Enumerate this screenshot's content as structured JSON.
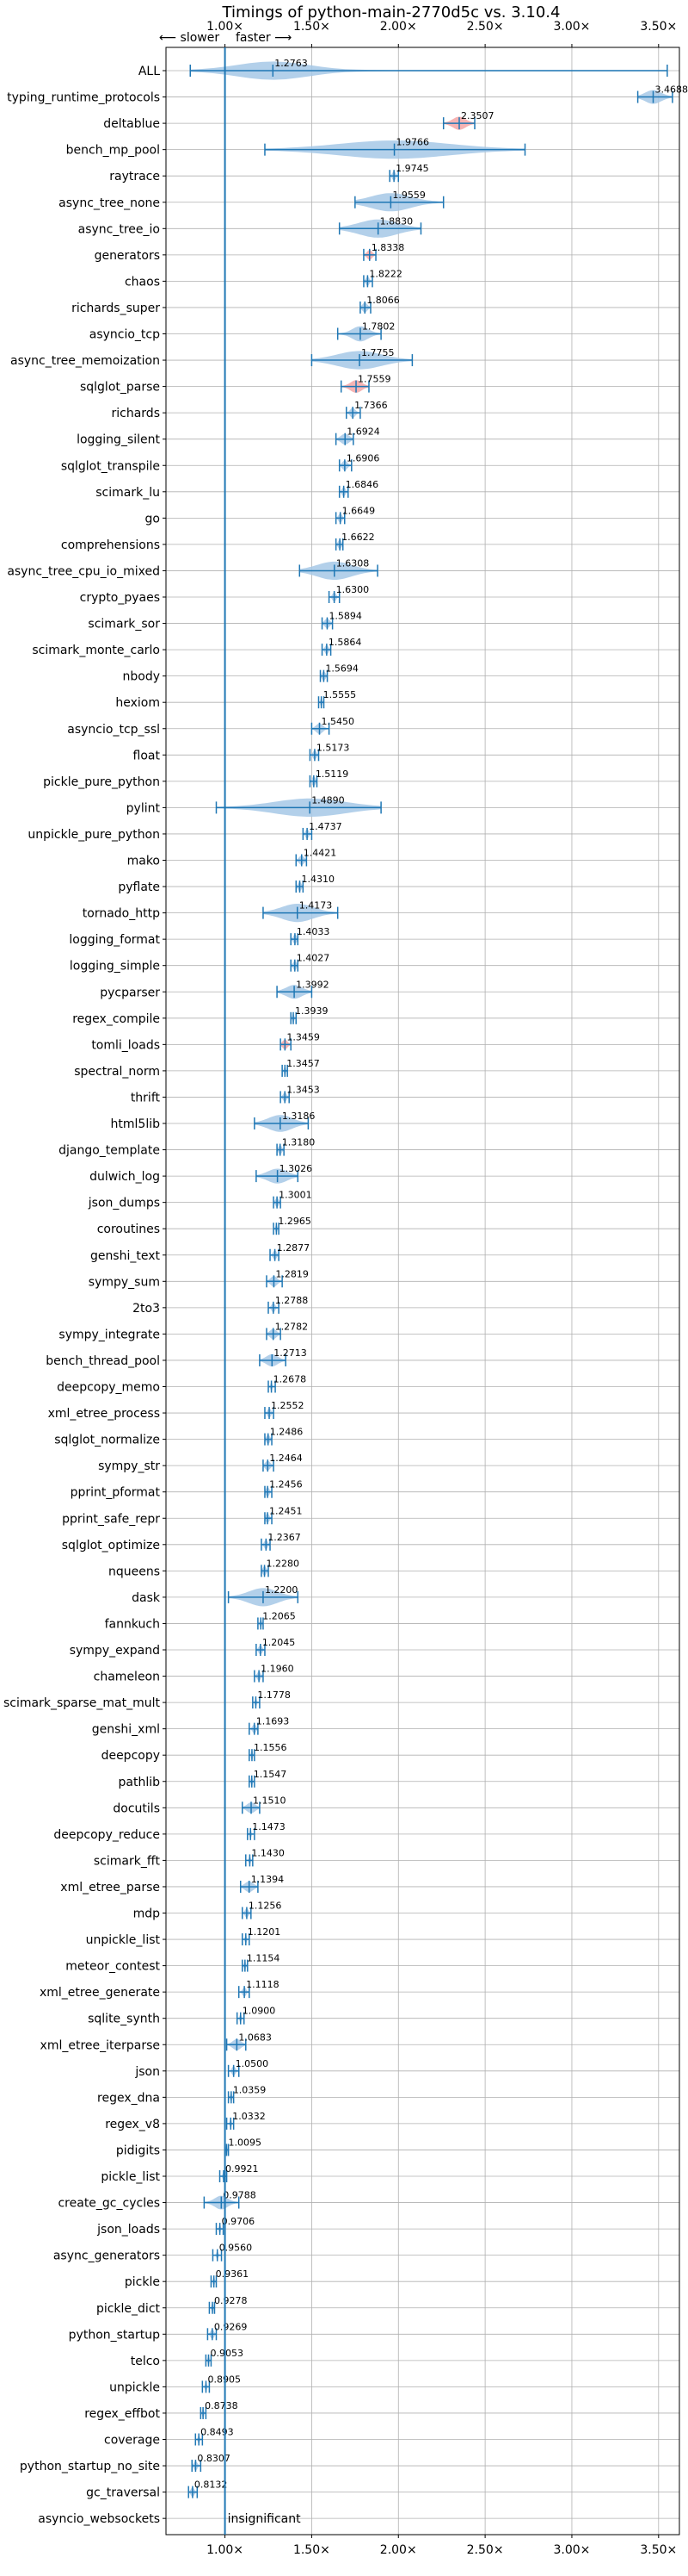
{
  "chart_data": {
    "type": "violin",
    "title": "Timings of python-main-2770d5c vs. 3.10.4",
    "xlabel": "",
    "ylabel": "",
    "xlim": [
      0.66,
      3.62
    ],
    "xticks": [
      {
        "value": 1.0,
        "label": "1.00×"
      },
      {
        "value": 1.5,
        "label": "1.50×"
      },
      {
        "value": 2.0,
        "label": "2.00×"
      },
      {
        "value": 2.5,
        "label": "2.50×"
      },
      {
        "value": 3.0,
        "label": "3.00×"
      },
      {
        "value": 3.5,
        "label": "3.50×"
      }
    ],
    "direction_labels": {
      "slower": "⟵ slower",
      "faster": "faster ⟶"
    },
    "annotation": "insignificant",
    "grid": true,
    "reference_line": 1.0,
    "colors": {
      "violin": "#a6c8e6",
      "violin_highlight": "#f4a6a6",
      "line": "#1f77b4",
      "grid": "#b0b0b0"
    },
    "benchmarks": [
      {
        "name": "ALL",
        "value": 1.2763,
        "min": 0.8,
        "max": 3.55,
        "spread": 0.45
      },
      {
        "name": "typing_runtime_protocols",
        "value": 3.4688,
        "min": 3.38,
        "max": 3.58,
        "spread": 0.1
      },
      {
        "name": "deltablue",
        "value": 2.3507,
        "min": 2.26,
        "max": 2.44,
        "spread": 0.08,
        "highlight": true
      },
      {
        "name": "bench_mp_pool",
        "value": 1.9766,
        "min": 1.23,
        "max": 2.73,
        "spread": 0.7
      },
      {
        "name": "raytrace",
        "value": 1.9745,
        "min": 1.95,
        "max": 2.0,
        "spread": 0.02
      },
      {
        "name": "async_tree_none",
        "value": 1.9559,
        "min": 1.75,
        "max": 2.26,
        "spread": 0.25
      },
      {
        "name": "async_tree_io",
        "value": 1.883,
        "min": 1.66,
        "max": 2.13,
        "spread": 0.24
      },
      {
        "name": "generators",
        "value": 1.8338,
        "min": 1.8,
        "max": 1.87,
        "spread": 0.03,
        "highlight": true
      },
      {
        "name": "chaos",
        "value": 1.8222,
        "min": 1.8,
        "max": 1.85,
        "spread": 0.02
      },
      {
        "name": "richards_super",
        "value": 1.8066,
        "min": 1.78,
        "max": 1.84,
        "spread": 0.03
      },
      {
        "name": "asyncio_tcp",
        "value": 1.7802,
        "min": 1.65,
        "max": 1.9,
        "spread": 0.1
      },
      {
        "name": "async_tree_memoization",
        "value": 1.7755,
        "min": 1.5,
        "max": 2.08,
        "spread": 0.28
      },
      {
        "name": "sqlglot_parse",
        "value": 1.7559,
        "min": 1.67,
        "max": 1.83,
        "spread": 0.07,
        "highlight": true
      },
      {
        "name": "richards",
        "value": 1.7366,
        "min": 1.7,
        "max": 1.78,
        "spread": 0.03
      },
      {
        "name": "logging_silent",
        "value": 1.6924,
        "min": 1.64,
        "max": 1.74,
        "spread": 0.05
      },
      {
        "name": "sqlglot_transpile",
        "value": 1.6906,
        "min": 1.66,
        "max": 1.73,
        "spread": 0.03
      },
      {
        "name": "scimark_lu",
        "value": 1.6846,
        "min": 1.66,
        "max": 1.71,
        "spread": 0.02
      },
      {
        "name": "go",
        "value": 1.6649,
        "min": 1.64,
        "max": 1.69,
        "spread": 0.02
      },
      {
        "name": "comprehensions",
        "value": 1.6622,
        "min": 1.64,
        "max": 1.68,
        "spread": 0.02
      },
      {
        "name": "async_tree_cpu_io_mixed",
        "value": 1.6308,
        "min": 1.43,
        "max": 1.88,
        "spread": 0.22
      },
      {
        "name": "crypto_pyaes",
        "value": 1.63,
        "min": 1.6,
        "max": 1.66,
        "spread": 0.02
      },
      {
        "name": "scimark_sor",
        "value": 1.5894,
        "min": 1.56,
        "max": 1.62,
        "spread": 0.03
      },
      {
        "name": "scimark_monte_carlo",
        "value": 1.5864,
        "min": 1.56,
        "max": 1.61,
        "spread": 0.02
      },
      {
        "name": "nbody",
        "value": 1.5694,
        "min": 1.55,
        "max": 1.59,
        "spread": 0.02
      },
      {
        "name": "hexiom",
        "value": 1.5555,
        "min": 1.54,
        "max": 1.57,
        "spread": 0.01
      },
      {
        "name": "asyncio_tcp_ssl",
        "value": 1.545,
        "min": 1.5,
        "max": 1.6,
        "spread": 0.04
      },
      {
        "name": "float",
        "value": 1.5173,
        "min": 1.49,
        "max": 1.54,
        "spread": 0.02
      },
      {
        "name": "pickle_pure_python",
        "value": 1.5119,
        "min": 1.49,
        "max": 1.53,
        "spread": 0.02
      },
      {
        "name": "pylint",
        "value": 1.489,
        "min": 0.95,
        "max": 1.9,
        "spread": 0.45
      },
      {
        "name": "unpickle_pure_python",
        "value": 1.4737,
        "min": 1.45,
        "max": 1.5,
        "spread": 0.02
      },
      {
        "name": "mako",
        "value": 1.4421,
        "min": 1.41,
        "max": 1.47,
        "spread": 0.03
      },
      {
        "name": "pyflate",
        "value": 1.431,
        "min": 1.41,
        "max": 1.45,
        "spread": 0.02
      },
      {
        "name": "tornado_http",
        "value": 1.4173,
        "min": 1.22,
        "max": 1.65,
        "spread": 0.2
      },
      {
        "name": "logging_format",
        "value": 1.4033,
        "min": 1.38,
        "max": 1.42,
        "spread": 0.02
      },
      {
        "name": "logging_simple",
        "value": 1.4027,
        "min": 1.38,
        "max": 1.42,
        "spread": 0.02
      },
      {
        "name": "pycparser",
        "value": 1.3992,
        "min": 1.3,
        "max": 1.5,
        "spread": 0.1
      },
      {
        "name": "regex_compile",
        "value": 1.3939,
        "min": 1.38,
        "max": 1.41,
        "spread": 0.01
      },
      {
        "name": "tomli_loads",
        "value": 1.3459,
        "min": 1.32,
        "max": 1.38,
        "spread": 0.03,
        "highlight": true
      },
      {
        "name": "spectral_norm",
        "value": 1.3457,
        "min": 1.33,
        "max": 1.36,
        "spread": 0.01
      },
      {
        "name": "thrift",
        "value": 1.3453,
        "min": 1.32,
        "max": 1.37,
        "spread": 0.02
      },
      {
        "name": "html5lib",
        "value": 1.3186,
        "min": 1.17,
        "max": 1.48,
        "spread": 0.15
      },
      {
        "name": "django_template",
        "value": 1.318,
        "min": 1.3,
        "max": 1.34,
        "spread": 0.02
      },
      {
        "name": "dulwich_log",
        "value": 1.3026,
        "min": 1.18,
        "max": 1.42,
        "spread": 0.12
      },
      {
        "name": "json_dumps",
        "value": 1.3001,
        "min": 1.28,
        "max": 1.32,
        "spread": 0.02
      },
      {
        "name": "coroutines",
        "value": 1.2965,
        "min": 1.28,
        "max": 1.31,
        "spread": 0.01
      },
      {
        "name": "genshi_text",
        "value": 1.2877,
        "min": 1.26,
        "max": 1.31,
        "spread": 0.02
      },
      {
        "name": "sympy_sum",
        "value": 1.2819,
        "min": 1.24,
        "max": 1.33,
        "spread": 0.04
      },
      {
        "name": "2to3",
        "value": 1.2788,
        "min": 1.25,
        "max": 1.31,
        "spread": 0.02
      },
      {
        "name": "sympy_integrate",
        "value": 1.2782,
        "min": 1.24,
        "max": 1.32,
        "spread": 0.04
      },
      {
        "name": "bench_thread_pool",
        "value": 1.2713,
        "min": 1.2,
        "max": 1.35,
        "spread": 0.07
      },
      {
        "name": "deepcopy_memo",
        "value": 1.2678,
        "min": 1.25,
        "max": 1.29,
        "spread": 0.01
      },
      {
        "name": "xml_etree_process",
        "value": 1.2552,
        "min": 1.23,
        "max": 1.28,
        "spread": 0.02
      },
      {
        "name": "sqlglot_normalize",
        "value": 1.2486,
        "min": 1.23,
        "max": 1.27,
        "spread": 0.02
      },
      {
        "name": "sympy_str",
        "value": 1.2464,
        "min": 1.22,
        "max": 1.28,
        "spread": 0.03
      },
      {
        "name": "pprint_pformat",
        "value": 1.2456,
        "min": 1.23,
        "max": 1.27,
        "spread": 0.02
      },
      {
        "name": "pprint_safe_repr",
        "value": 1.2451,
        "min": 1.23,
        "max": 1.27,
        "spread": 0.02
      },
      {
        "name": "sqlglot_optimize",
        "value": 1.2367,
        "min": 1.21,
        "max": 1.26,
        "spread": 0.02
      },
      {
        "name": "nqueens",
        "value": 1.228,
        "min": 1.21,
        "max": 1.25,
        "spread": 0.02
      },
      {
        "name": "dask",
        "value": 1.22,
        "min": 1.02,
        "max": 1.42,
        "spread": 0.18
      },
      {
        "name": "fannkuch",
        "value": 1.2065,
        "min": 1.19,
        "max": 1.22,
        "spread": 0.01
      },
      {
        "name": "sympy_expand",
        "value": 1.2045,
        "min": 1.18,
        "max": 1.23,
        "spread": 0.02
      },
      {
        "name": "chameleon",
        "value": 1.196,
        "min": 1.17,
        "max": 1.22,
        "spread": 0.02
      },
      {
        "name": "scimark_sparse_mat_mult",
        "value": 1.1778,
        "min": 1.16,
        "max": 1.2,
        "spread": 0.01
      },
      {
        "name": "genshi_xml",
        "value": 1.1693,
        "min": 1.14,
        "max": 1.19,
        "spread": 0.02
      },
      {
        "name": "deepcopy",
        "value": 1.1556,
        "min": 1.14,
        "max": 1.17,
        "spread": 0.01
      },
      {
        "name": "pathlib",
        "value": 1.1547,
        "min": 1.14,
        "max": 1.17,
        "spread": 0.01
      },
      {
        "name": "docutils",
        "value": 1.151,
        "min": 1.1,
        "max": 1.2,
        "spread": 0.05
      },
      {
        "name": "deepcopy_reduce",
        "value": 1.1473,
        "min": 1.13,
        "max": 1.17,
        "spread": 0.01
      },
      {
        "name": "scimark_fft",
        "value": 1.143,
        "min": 1.12,
        "max": 1.16,
        "spread": 0.01
      },
      {
        "name": "xml_etree_parse",
        "value": 1.1394,
        "min": 1.09,
        "max": 1.19,
        "spread": 0.05
      },
      {
        "name": "mdp",
        "value": 1.1256,
        "min": 1.1,
        "max": 1.15,
        "spread": 0.02
      },
      {
        "name": "unpickle_list",
        "value": 1.1201,
        "min": 1.1,
        "max": 1.14,
        "spread": 0.01
      },
      {
        "name": "meteor_contest",
        "value": 1.1154,
        "min": 1.1,
        "max": 1.13,
        "spread": 0.01
      },
      {
        "name": "xml_etree_generate",
        "value": 1.1118,
        "min": 1.08,
        "max": 1.14,
        "spread": 0.02
      },
      {
        "name": "sqlite_synth",
        "value": 1.09,
        "min": 1.07,
        "max": 1.11,
        "spread": 0.01
      },
      {
        "name": "xml_etree_iterparse",
        "value": 1.0683,
        "min": 1.01,
        "max": 1.12,
        "spread": 0.05
      },
      {
        "name": "json",
        "value": 1.05,
        "min": 1.02,
        "max": 1.08,
        "spread": 0.02
      },
      {
        "name": "regex_dna",
        "value": 1.0359,
        "min": 1.02,
        "max": 1.05,
        "spread": 0.01
      },
      {
        "name": "regex_v8",
        "value": 1.0332,
        "min": 1.01,
        "max": 1.05,
        "spread": 0.01
      },
      {
        "name": "pidigits",
        "value": 1.0095,
        "min": 1.0,
        "max": 1.02,
        "spread": 0.005
      },
      {
        "name": "pickle_list",
        "value": 0.9921,
        "min": 0.97,
        "max": 1.01,
        "spread": 0.01
      },
      {
        "name": "create_gc_cycles",
        "value": 0.9788,
        "min": 0.88,
        "max": 1.08,
        "spread": 0.08
      },
      {
        "name": "json_loads",
        "value": 0.9706,
        "min": 0.95,
        "max": 0.99,
        "spread": 0.01
      },
      {
        "name": "async_generators",
        "value": 0.956,
        "min": 0.93,
        "max": 0.98,
        "spread": 0.01
      },
      {
        "name": "pickle",
        "value": 0.9361,
        "min": 0.92,
        "max": 0.95,
        "spread": 0.01
      },
      {
        "name": "pickle_dict",
        "value": 0.9278,
        "min": 0.91,
        "max": 0.94,
        "spread": 0.01
      },
      {
        "name": "python_startup",
        "value": 0.9269,
        "min": 0.9,
        "max": 0.95,
        "spread": 0.02
      },
      {
        "name": "telco",
        "value": 0.9053,
        "min": 0.89,
        "max": 0.92,
        "spread": 0.01
      },
      {
        "name": "unpickle",
        "value": 0.8905,
        "min": 0.87,
        "max": 0.91,
        "spread": 0.01
      },
      {
        "name": "regex_effbot",
        "value": 0.8738,
        "min": 0.86,
        "max": 0.89,
        "spread": 0.01
      },
      {
        "name": "coverage",
        "value": 0.8493,
        "min": 0.83,
        "max": 0.87,
        "spread": 0.01
      },
      {
        "name": "python_startup_no_site",
        "value": 0.8307,
        "min": 0.81,
        "max": 0.86,
        "spread": 0.02
      },
      {
        "name": "gc_traversal",
        "value": 0.8132,
        "min": 0.79,
        "max": 0.84,
        "spread": 0.02
      },
      {
        "name": "asyncio_websockets",
        "value": null
      }
    ]
  }
}
